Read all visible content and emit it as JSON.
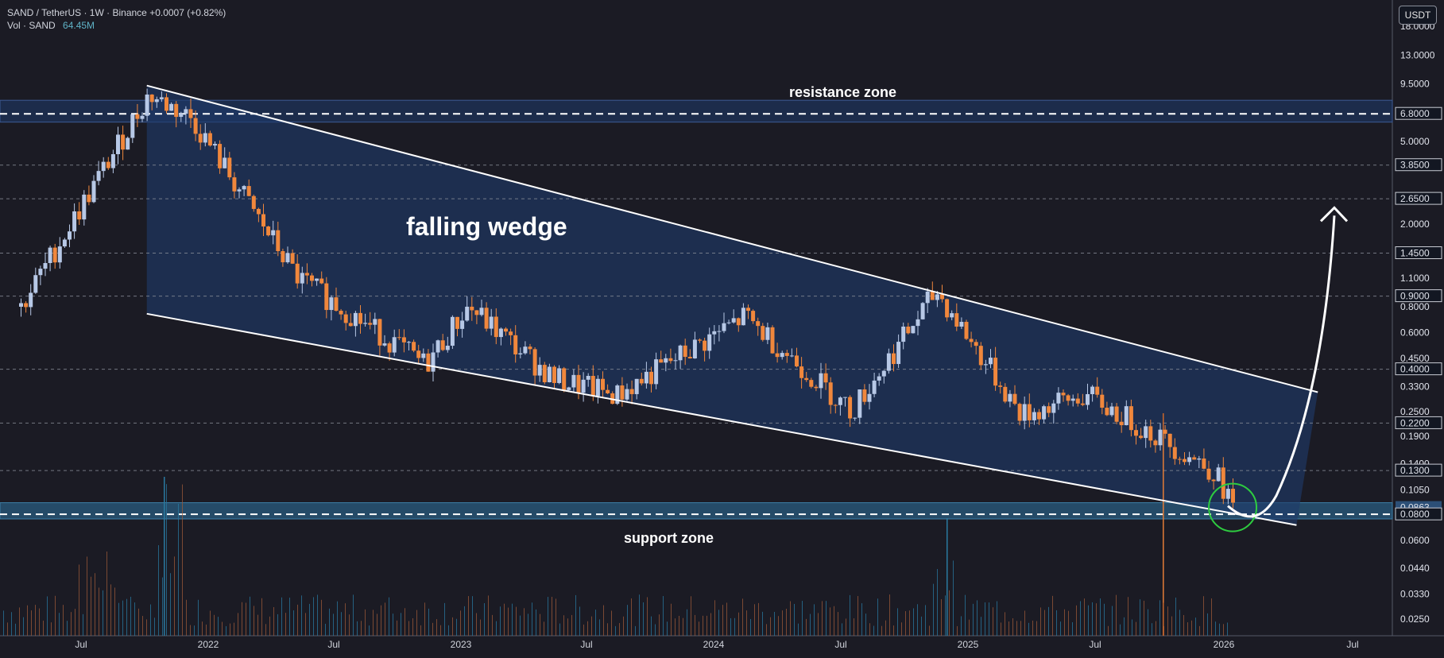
{
  "header": {
    "symbol_line": "SAND / TetherUS · 1W · Binance",
    "change": "+0.0007 (+0.82%)",
    "vol_label": "Vol · SAND",
    "vol_value": "64.45M",
    "currency": "USDT"
  },
  "annotations": {
    "resistance": "resistance zone",
    "support": "support zone",
    "pattern": "falling wedge"
  },
  "colors": {
    "background": "#1b1b24",
    "up": "#b7c8e6",
    "down": "#f0873c",
    "wedge_fill": "#1e3a6b",
    "support_zone": "#2a5f86",
    "resistance_zone": "#1e3a6b",
    "circle": "#2ecc40",
    "line": "#ffffff"
  },
  "chart_data": {
    "type": "candlestick",
    "title": "SAND / TetherUS · 1W · Binance",
    "scale": "log",
    "ylim": [
      0.0208,
      22
    ],
    "x_tick_labels": [
      "Jul",
      "2022",
      "Jul",
      "2023",
      "Jul",
      "2024",
      "Jul",
      "2025",
      "Jul",
      "2026",
      "Jul"
    ],
    "y_tick_labels": [
      "18.0000",
      "13.0000",
      "9.5000",
      "6.8000",
      "5.0000",
      "3.8500",
      "2.6500",
      "2.0000",
      "1.4500",
      "1.1000",
      "0.9000",
      "0.8000",
      "0.6000",
      "0.4500",
      "0.4000",
      "0.3300",
      "0.2500",
      "0.2200",
      "0.1900",
      "0.1400",
      "0.1300",
      "0.1050",
      "0.0863",
      "0.0800",
      "0.0600",
      "0.0440",
      "0.0330",
      "0.0250"
    ],
    "y_tick_values": [
      18,
      13,
      9.5,
      6.8,
      5,
      3.85,
      2.65,
      2,
      1.45,
      1.1,
      0.9,
      0.8,
      0.6,
      0.45,
      0.4,
      0.33,
      0.25,
      0.22,
      0.19,
      0.14,
      0.13,
      0.105,
      0.0863,
      0.08,
      0.06,
      0.044,
      0.033,
      0.025
    ],
    "highlighted_levels": [
      6.8,
      3.85,
      2.65,
      1.45,
      0.9,
      0.4,
      0.22,
      0.13,
      0.08
    ],
    "current_price": 0.0863,
    "key_points": [
      {
        "date": "2021-05",
        "price": 0.8
      },
      {
        "date": "2021-11",
        "price": 8.4
      },
      {
        "date": "2022-01",
        "price": 6.5
      },
      {
        "date": "2022-06",
        "price": 1.1
      },
      {
        "date": "2022-12",
        "price": 0.42
      },
      {
        "date": "2023-02",
        "price": 0.8
      },
      {
        "date": "2023-06",
        "price": 0.36
      },
      {
        "date": "2023-09",
        "price": 0.3
      },
      {
        "date": "2024-03",
        "price": 0.72
      },
      {
        "date": "2024-08",
        "price": 0.25
      },
      {
        "date": "2024-12",
        "price": 0.95
      },
      {
        "date": "2025-04",
        "price": 0.24
      },
      {
        "date": "2025-07",
        "price": 0.3
      },
      {
        "date": "2025-10",
        "price": 0.2
      },
      {
        "date": "2026-01",
        "price": 0.13
      },
      {
        "date": "2026-02",
        "price": 0.0863
      }
    ],
    "zones": {
      "resistance": [
        6.2,
        7.9
      ],
      "support": [
        0.076,
        0.091
      ]
    },
    "wedge": {
      "upper": [
        {
          "date": "2021-11",
          "price": 9.3
        },
        {
          "date": "2026-06",
          "price": 0.31
        }
      ],
      "lower": [
        {
          "date": "2021-11",
          "price": 0.74
        },
        {
          "date": "2026-05",
          "price": 0.071
        }
      ]
    },
    "projection_target": 2.4,
    "grid": false,
    "legend": "top-left"
  }
}
